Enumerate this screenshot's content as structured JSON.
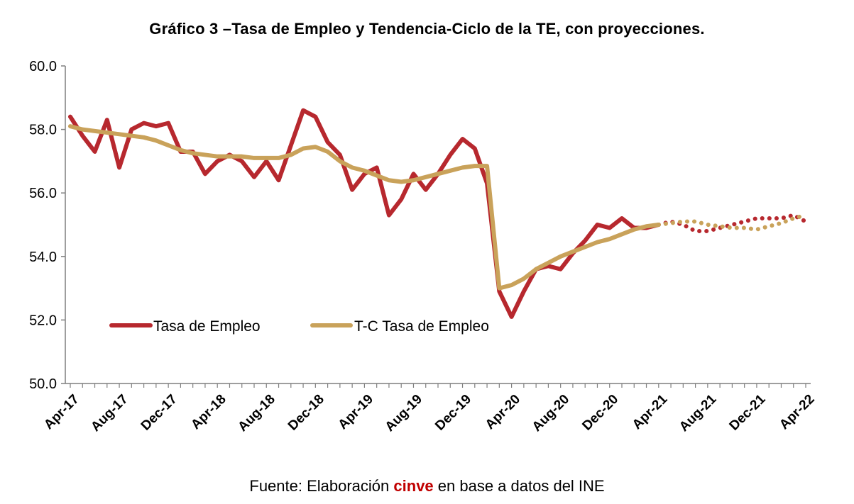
{
  "chart_data": {
    "type": "line",
    "title": "Gráfico 3 –Tasa de Empleo y Tendencia-Ciclo de la TE, con proyecciones.",
    "xlabel": "",
    "ylabel": "",
    "ylim": [
      50,
      60
    ],
    "y_ticks": [
      "50.0",
      "52.0",
      "54.0",
      "56.0",
      "58.0",
      "60.0"
    ],
    "x": [
      "Apr-17",
      "May-17",
      "Jun-17",
      "Jul-17",
      "Aug-17",
      "Sep-17",
      "Oct-17",
      "Nov-17",
      "Dec-17",
      "Jan-18",
      "Feb-18",
      "Mar-18",
      "Apr-18",
      "May-18",
      "Jun-18",
      "Jul-18",
      "Aug-18",
      "Sep-18",
      "Oct-18",
      "Nov-18",
      "Dec-18",
      "Jan-19",
      "Feb-19",
      "Mar-19",
      "Apr-19",
      "May-19",
      "Jun-19",
      "Jul-19",
      "Aug-19",
      "Sep-19",
      "Oct-19",
      "Nov-19",
      "Dec-19",
      "Jan-20",
      "Feb-20",
      "Mar-20",
      "Apr-20",
      "May-20",
      "Jun-20",
      "Jul-20",
      "Aug-20",
      "Sep-20",
      "Oct-20",
      "Nov-20",
      "Dec-20",
      "Jan-21",
      "Feb-21",
      "Mar-21",
      "Apr-21",
      "May-21",
      "Jun-21",
      "Jul-21",
      "Aug-21",
      "Sep-21",
      "Oct-21",
      "Nov-21",
      "Dec-21",
      "Jan-22",
      "Feb-22",
      "Mar-22",
      "Apr-22"
    ],
    "x_tick_labels": [
      "Apr-17",
      "Aug-17",
      "Dec-17",
      "Apr-18",
      "Aug-18",
      "Dec-18",
      "Apr-19",
      "Aug-19",
      "Dec-19",
      "Apr-20",
      "Aug-20",
      "Dec-20",
      "Apr-21",
      "Aug-21",
      "Dec-21",
      "Apr-22"
    ],
    "projection_start": "May-21",
    "series": [
      {
        "name": "Tasa de Empleo",
        "color": "#B7282E",
        "values": [
          58.4,
          57.8,
          57.3,
          58.3,
          56.8,
          58.0,
          58.2,
          58.1,
          58.2,
          57.3,
          57.3,
          56.6,
          57.0,
          57.2,
          57.0,
          56.5,
          57.0,
          56.4,
          57.5,
          58.6,
          58.4,
          57.6,
          57.2,
          56.1,
          56.6,
          56.8,
          55.3,
          55.8,
          56.6,
          56.1,
          56.6,
          57.2,
          57.7,
          57.4,
          56.3,
          52.9,
          52.1,
          52.9,
          53.6,
          53.7,
          53.6,
          54.1,
          54.5,
          55.0,
          54.9,
          55.2,
          54.9,
          54.9,
          55.0,
          55.1,
          55.0,
          54.8,
          54.8,
          54.9,
          55.0,
          55.1,
          55.2,
          55.2,
          55.2,
          55.3,
          55.1
        ]
      },
      {
        "name": "T-C Tasa de Empleo",
        "color": "#C9A25A",
        "values": [
          58.1,
          58.0,
          57.95,
          57.9,
          57.85,
          57.8,
          57.75,
          57.65,
          57.5,
          57.35,
          57.25,
          57.2,
          57.15,
          57.15,
          57.15,
          57.1,
          57.1,
          57.1,
          57.2,
          57.4,
          57.45,
          57.3,
          57.0,
          56.8,
          56.7,
          56.55,
          56.4,
          56.35,
          56.4,
          56.5,
          56.6,
          56.7,
          56.8,
          56.85,
          56.85,
          53.0,
          53.1,
          53.3,
          53.6,
          53.8,
          54.0,
          54.15,
          54.3,
          54.45,
          54.55,
          54.7,
          54.85,
          54.95,
          55.0,
          55.05,
          55.1,
          55.1,
          55.0,
          54.95,
          54.9,
          54.9,
          54.85,
          54.95,
          55.05,
          55.2,
          55.3
        ]
      }
    ],
    "legend": "inside-lower-left",
    "grid": false
  },
  "source": {
    "prefix": "Fuente: Elaboración ",
    "brand": "cinve",
    "suffix": " en base a datos del INE",
    "brand_color": "#C00000"
  }
}
